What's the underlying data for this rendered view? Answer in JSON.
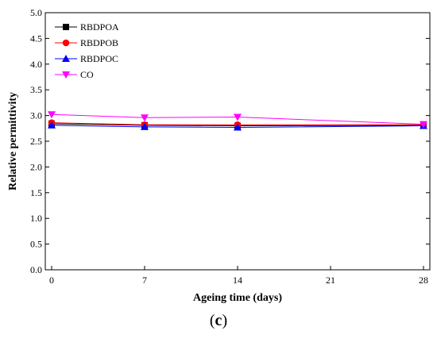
{
  "chart_data": {
    "type": "line",
    "xlabel": "Ageing time (days)",
    "ylabel": "Relative permittivity",
    "xlim": [
      0,
      28
    ],
    "ylim": [
      0,
      5
    ],
    "x_ticks": [
      0,
      7,
      14,
      21,
      28
    ],
    "y_ticks": [
      "0.0",
      "0.5",
      "1.0",
      "1.5",
      "2.0",
      "2.5",
      "3.0",
      "3.5",
      "4.0",
      "4.5",
      "5.0"
    ],
    "grid": false,
    "legend_position": "top-left",
    "x": [
      0,
      7,
      14,
      28
    ],
    "series": [
      {
        "name": "RBDPOA",
        "marker": "square",
        "color": "#000000",
        "values": [
          2.84,
          2.81,
          2.8,
          2.81
        ]
      },
      {
        "name": "RBDPOB",
        "marker": "circle",
        "color": "#ff0000",
        "values": [
          2.86,
          2.82,
          2.82,
          2.82
        ]
      },
      {
        "name": "RBDPOC",
        "marker": "triangle-up",
        "color": "#0000ff",
        "values": [
          2.81,
          2.78,
          2.77,
          2.8
        ]
      },
      {
        "name": "CO",
        "marker": "triangle-down",
        "color": "#ff00ff",
        "values": [
          3.02,
          2.96,
          2.97,
          2.83
        ]
      }
    ]
  },
  "panel": {
    "prefix": "(",
    "letter": "c",
    "suffix": ")"
  }
}
